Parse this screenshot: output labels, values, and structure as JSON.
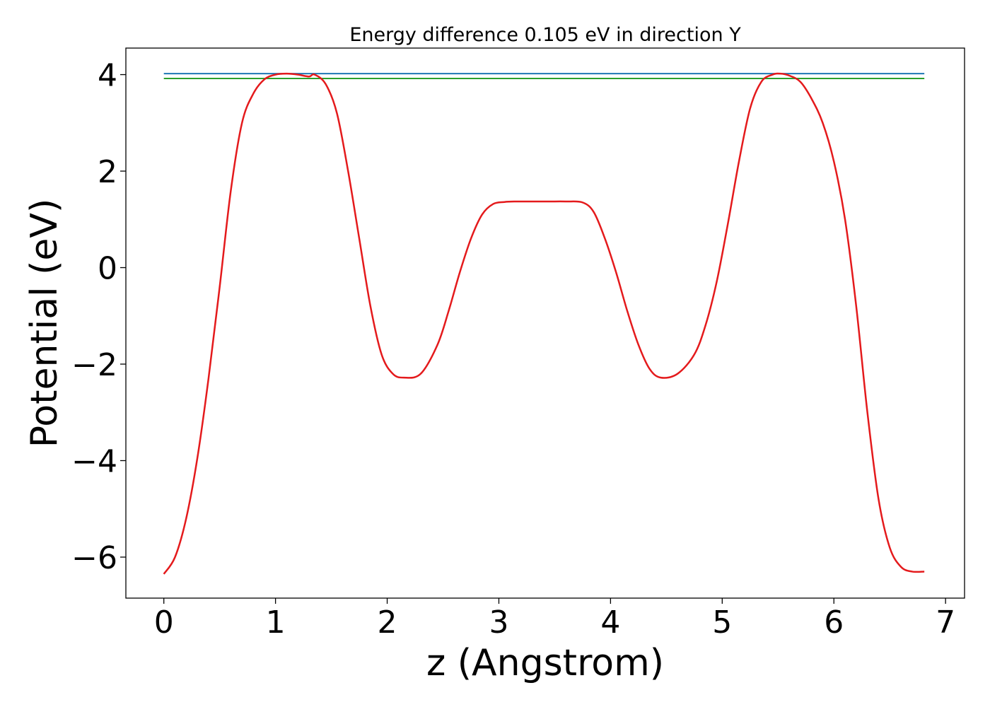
{
  "chart_data": {
    "type": "line",
    "title": "Energy difference 0.105 eV in direction Y",
    "xlabel": "z (Angstrom)",
    "ylabel": "Potential (eV)",
    "xlim": [
      -0.34,
      7.17
    ],
    "ylim": [
      -6.85,
      4.55
    ],
    "xticks": [
      0,
      1,
      2,
      3,
      4,
      5,
      6,
      7
    ],
    "xtick_labels": [
      "0",
      "1",
      "2",
      "3",
      "4",
      "5",
      "6",
      "7"
    ],
    "yticks": [
      -6,
      -4,
      -2,
      0,
      2,
      4
    ],
    "ytick_labels": [
      "−6",
      "−4",
      "−2",
      "0",
      "2",
      "4"
    ],
    "grid": false,
    "legend": "none",
    "series": [
      {
        "color": "#1f77b4",
        "kind": "hline",
        "y": 4.02,
        "xrange": [
          0,
          6.81
        ]
      },
      {
        "color": "#2ca02c",
        "kind": "hline",
        "y": 3.92,
        "xrange": [
          0,
          6.81
        ]
      },
      {
        "color": "#e41a1c",
        "kind": "curve",
        "x": [
          0,
          0.1,
          0.2,
          0.3,
          0.4,
          0.5,
          0.6,
          0.7,
          0.8,
          0.9,
          1.0,
          1.1,
          1.2,
          1.3,
          1.35,
          1.45,
          1.55,
          1.65,
          1.75,
          1.85,
          1.95,
          2.05,
          2.15,
          2.3,
          2.45,
          2.55,
          2.65,
          2.75,
          2.85,
          2.95,
          3.05,
          3.15,
          3.3,
          3.45,
          3.6,
          3.75,
          3.85,
          3.95,
          4.05,
          4.15,
          4.25,
          4.35,
          4.45,
          4.6,
          4.75,
          4.85,
          4.95,
          5.05,
          5.15,
          5.25,
          5.35,
          5.45,
          5.52,
          5.6,
          5.7,
          5.8,
          5.9,
          6.0,
          6.1,
          6.2,
          6.3,
          6.4,
          6.5,
          6.6,
          6.7,
          6.81
        ],
        "y": [
          -6.35,
          -6.0,
          -5.2,
          -3.95,
          -2.3,
          -0.4,
          1.6,
          3.0,
          3.6,
          3.9,
          4.0,
          4.02,
          4.0,
          3.96,
          4.0,
          3.8,
          3.2,
          2.0,
          0.6,
          -0.8,
          -1.8,
          -2.2,
          -2.28,
          -2.2,
          -1.6,
          -0.9,
          -0.1,
          0.6,
          1.1,
          1.32,
          1.36,
          1.37,
          1.37,
          1.37,
          1.37,
          1.35,
          1.15,
          0.6,
          -0.1,
          -0.9,
          -1.6,
          -2.1,
          -2.28,
          -2.2,
          -1.8,
          -1.2,
          -0.3,
          0.9,
          2.2,
          3.3,
          3.85,
          4.0,
          4.02,
          3.98,
          3.85,
          3.5,
          3.0,
          2.2,
          1.0,
          -0.8,
          -3.0,
          -4.8,
          -5.8,
          -6.2,
          -6.3,
          -6.3
        ]
      }
    ]
  }
}
